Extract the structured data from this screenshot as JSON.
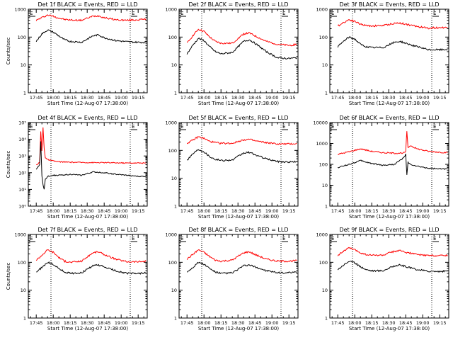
{
  "colors": {
    "events": "#000000",
    "lld": "#ff0000",
    "axis": "#000000"
  },
  "chart_data": [
    {
      "type": "line",
      "title": "Det 1f BLACK = Events, RED = LLD",
      "ylabel": "Counts/sec",
      "xlabel": "Start Time (12-Aug-07 17:38:00)",
      "x_ticks": [
        "17:45",
        "18:00",
        "18:15",
        "18:30",
        "18:45",
        "19:00",
        "19:15"
      ],
      "y_ticks": [
        "1",
        "10",
        "100",
        "1000"
      ],
      "ylim": [
        1,
        1000
      ],
      "y_scale": "log",
      "markers": [
        "E",
        "E"
      ],
      "series": [
        {
          "name": "LLD",
          "x": [
            0,
            5,
            10,
            15,
            20,
            25,
            30,
            40,
            50,
            55,
            60,
            70,
            80,
            90,
            97
          ],
          "values": [
            400,
            500,
            620,
            560,
            480,
            430,
            410,
            400,
            560,
            580,
            500,
            420,
            400,
            420,
            440
          ]
        },
        {
          "name": "Events",
          "x": [
            0,
            5,
            10,
            15,
            20,
            25,
            30,
            40,
            50,
            55,
            60,
            70,
            80,
            90,
            97
          ],
          "values": [
            70,
            130,
            180,
            150,
            110,
            80,
            70,
            65,
            110,
            120,
            95,
            75,
            68,
            65,
            65
          ]
        }
      ]
    },
    {
      "type": "line",
      "title": "Det 2f BLACK = Events, RED = LLD",
      "ylabel": "",
      "xlabel": "Start Time (12-Aug-07 17:38:00)",
      "x_ticks": [
        "17:45",
        "18:00",
        "18:15",
        "18:30",
        "18:45",
        "19:00",
        "19:15"
      ],
      "y_ticks": [
        "1",
        "10",
        "100",
        "1000"
      ],
      "ylim": [
        1,
        1000
      ],
      "y_scale": "log",
      "markers": [
        "E",
        "E"
      ],
      "series": [
        {
          "name": "LLD",
          "x": [
            0,
            5,
            10,
            15,
            20,
            25,
            30,
            40,
            50,
            55,
            60,
            70,
            80,
            90,
            97
          ],
          "values": [
            60,
            110,
            190,
            160,
            100,
            70,
            60,
            60,
            130,
            140,
            110,
            70,
            55,
            50,
            55
          ]
        },
        {
          "name": "Events",
          "x": [
            0,
            5,
            10,
            15,
            20,
            25,
            30,
            40,
            50,
            55,
            60,
            70,
            80,
            90,
            97
          ],
          "values": [
            25,
            50,
            90,
            75,
            45,
            30,
            25,
            28,
            70,
            80,
            60,
            30,
            18,
            17,
            18
          ]
        }
      ]
    },
    {
      "type": "line",
      "title": "Det 3f BLACK = Events, RED = LLD",
      "ylabel": "",
      "xlabel": "Start Time (12-Aug-07 17:38:00)",
      "x_ticks": [
        "17:45",
        "18:00",
        "18:15",
        "18:30",
        "18:45",
        "19:00",
        "19:15"
      ],
      "y_ticks": [
        "1",
        "10",
        "100",
        "1000"
      ],
      "ylim": [
        1,
        1000
      ],
      "y_scale": "log",
      "markers": [
        "E",
        "E"
      ],
      "series": [
        {
          "name": "LLD",
          "x": [
            0,
            5,
            10,
            15,
            20,
            25,
            30,
            40,
            50,
            55,
            60,
            70,
            80,
            90,
            97
          ],
          "values": [
            250,
            330,
            420,
            370,
            290,
            260,
            250,
            260,
            310,
            320,
            290,
            240,
            210,
            220,
            220
          ]
        },
        {
          "name": "Events",
          "x": [
            0,
            5,
            10,
            15,
            20,
            25,
            30,
            40,
            50,
            55,
            60,
            70,
            80,
            90,
            97
          ],
          "values": [
            45,
            70,
            100,
            85,
            55,
            45,
            42,
            42,
            65,
            70,
            60,
            45,
            35,
            35,
            36
          ]
        }
      ]
    },
    {
      "type": "line",
      "title": "Det 4f BLACK = Events, RED = LLD",
      "ylabel": "Counts/sec",
      "xlabel": "Start Time (12-Aug-07 17:38:00)",
      "x_ticks": [
        "17:45",
        "18:00",
        "18:15",
        "18:30",
        "18:45",
        "19:00",
        "19:15"
      ],
      "y_ticks": [
        "10⁰",
        "10¹",
        "10²",
        "10³",
        "10⁴",
        "10⁵"
      ],
      "ylim": [
        1,
        100000
      ],
      "y_scale": "log",
      "markers": [
        "E",
        "E"
      ],
      "series": [
        {
          "name": "LLD",
          "x": [
            0,
            3,
            4,
            5,
            6,
            7,
            8,
            10,
            15,
            20,
            30,
            40,
            50,
            60,
            70,
            80,
            90,
            97
          ],
          "values": [
            300,
            400,
            30000,
            2000,
            50000,
            3000,
            800,
            600,
            500,
            450,
            420,
            410,
            400,
            400,
            390,
            380,
            380,
            380
          ]
        },
        {
          "name": "Events",
          "x": [
            0,
            3,
            4,
            5,
            6,
            7,
            8,
            10,
            15,
            20,
            30,
            40,
            50,
            60,
            70,
            80,
            90,
            97
          ],
          "values": [
            150,
            300,
            8000,
            60,
            20,
            10,
            40,
            60,
            70,
            70,
            80,
            70,
            110,
            100,
            80,
            70,
            60,
            60
          ]
        }
      ]
    },
    {
      "type": "line",
      "title": "Det 5f BLACK = Events, RED = LLD",
      "ylabel": "",
      "xlabel": "Start Time (12-Aug-07 17:38:00)",
      "x_ticks": [
        "17:45",
        "18:00",
        "18:15",
        "18:30",
        "18:45",
        "19:00",
        "19:15"
      ],
      "y_ticks": [
        "1",
        "10",
        "100",
        "1000"
      ],
      "ylim": [
        1,
        1000
      ],
      "y_scale": "log",
      "markers": [
        "E",
        "E"
      ],
      "series": [
        {
          "name": "LLD",
          "x": [
            0,
            5,
            10,
            15,
            20,
            25,
            30,
            40,
            50,
            55,
            60,
            70,
            80,
            90,
            97
          ],
          "values": [
            180,
            230,
            310,
            270,
            210,
            190,
            180,
            180,
            240,
            250,
            220,
            190,
            170,
            170,
            175
          ]
        },
        {
          "name": "Events",
          "x": [
            0,
            5,
            10,
            15,
            20,
            25,
            30,
            40,
            50,
            55,
            60,
            70,
            80,
            90,
            97
          ],
          "values": [
            45,
            75,
            110,
            90,
            60,
            48,
            44,
            45,
            80,
            85,
            70,
            50,
            40,
            38,
            40
          ]
        }
      ]
    },
    {
      "type": "line",
      "title": "Det 6f BLACK = Events, RED = LLD",
      "ylabel": "",
      "xlabel": "Start Time (12-Aug-07 17:38:00)",
      "x_ticks": [
        "17:45",
        "18:00",
        "18:15",
        "18:30",
        "18:45",
        "19:00",
        "19:15"
      ],
      "y_ticks": [
        "1",
        "10",
        "100",
        "1000",
        "10000"
      ],
      "ylim": [
        1,
        10000
      ],
      "y_scale": "log",
      "markers": [
        "E",
        "E"
      ],
      "series": [
        {
          "name": "LLD",
          "x": [
            0,
            10,
            20,
            30,
            40,
            50,
            58,
            60,
            61,
            62,
            64,
            70,
            80,
            90,
            97
          ],
          "values": [
            300,
            400,
            550,
            420,
            360,
            340,
            350,
            400,
            4000,
            600,
            800,
            550,
            420,
            380,
            360
          ]
        },
        {
          "name": "Events",
          "x": [
            0,
            10,
            20,
            30,
            40,
            50,
            58,
            60,
            61,
            62,
            64,
            70,
            80,
            90,
            97
          ],
          "values": [
            70,
            100,
            150,
            110,
            90,
            100,
            200,
            300,
            30,
            120,
            100,
            80,
            65,
            60,
            60
          ]
        }
      ]
    },
    {
      "type": "line",
      "title": "Det 7f BLACK = Events, RED = LLD",
      "ylabel": "Counts/sec",
      "xlabel": "Start Time (12-Aug-07 17:38:00)",
      "x_ticks": [
        "17:45",
        "18:00",
        "18:15",
        "18:30",
        "18:45",
        "19:00",
        "19:15"
      ],
      "y_ticks": [
        "1",
        "10",
        "100",
        "1000"
      ],
      "ylim": [
        1,
        1000
      ],
      "y_scale": "log",
      "markers": [
        "E",
        "E"
      ],
      "series": [
        {
          "name": "LLD",
          "x": [
            0,
            5,
            10,
            15,
            20,
            25,
            30,
            40,
            50,
            55,
            60,
            70,
            80,
            90,
            97
          ],
          "values": [
            120,
            180,
            280,
            230,
            150,
            110,
            100,
            110,
            220,
            240,
            190,
            130,
            105,
            105,
            110
          ]
        },
        {
          "name": "Events",
          "x": [
            0,
            5,
            10,
            15,
            20,
            25,
            30,
            40,
            50,
            55,
            60,
            70,
            80,
            90,
            97
          ],
          "values": [
            45,
            65,
            100,
            85,
            60,
            45,
            40,
            42,
            75,
            80,
            68,
            50,
            40,
            40,
            42
          ]
        }
      ]
    },
    {
      "type": "line",
      "title": "Det 8f BLACK = Events, RED = LLD",
      "ylabel": "",
      "xlabel": "Start Time (12-Aug-07 17:38:00)",
      "x_ticks": [
        "17:45",
        "18:00",
        "18:15",
        "18:30",
        "18:45",
        "19:00",
        "19:15"
      ],
      "y_ticks": [
        "1",
        "10",
        "100",
        "1000"
      ],
      "ylim": [
        1,
        1000
      ],
      "y_scale": "log",
      "markers": [
        "E",
        "E"
      ],
      "series": [
        {
          "name": "LLD",
          "x": [
            0,
            5,
            10,
            15,
            20,
            25,
            30,
            40,
            50,
            55,
            60,
            70,
            80,
            90,
            97
          ],
          "values": [
            130,
            190,
            280,
            230,
            160,
            120,
            110,
            120,
            220,
            240,
            190,
            130,
            110,
            110,
            115
          ]
        },
        {
          "name": "Events",
          "x": [
            0,
            5,
            10,
            15,
            20,
            25,
            30,
            40,
            50,
            55,
            60,
            70,
            80,
            90,
            97
          ],
          "values": [
            45,
            65,
            100,
            85,
            60,
            45,
            40,
            42,
            75,
            80,
            68,
            50,
            42,
            42,
            44
          ]
        }
      ]
    },
    {
      "type": "line",
      "title": "Det 9f BLACK = Events, RED = LLD",
      "ylabel": "",
      "xlabel": "Start Time (12-Aug-07 17:38:00)",
      "x_ticks": [
        "17:45",
        "18:00",
        "18:15",
        "18:30",
        "18:45",
        "19:00",
        "19:15"
      ],
      "y_ticks": [
        "1",
        "10",
        "100",
        "1000"
      ],
      "ylim": [
        1,
        1000
      ],
      "y_scale": "log",
      "markers": [
        "E",
        "E"
      ],
      "series": [
        {
          "name": "LLD",
          "x": [
            0,
            5,
            10,
            15,
            20,
            25,
            30,
            40,
            50,
            55,
            60,
            70,
            80,
            90,
            97
          ],
          "values": [
            180,
            250,
            330,
            280,
            220,
            190,
            180,
            180,
            250,
            260,
            230,
            190,
            175,
            175,
            180
          ]
        },
        {
          "name": "Events",
          "x": [
            0,
            5,
            10,
            15,
            20,
            25,
            30,
            40,
            50,
            55,
            60,
            70,
            80,
            90,
            97
          ],
          "values": [
            55,
            80,
            110,
            95,
            70,
            55,
            50,
            50,
            75,
            80,
            70,
            55,
            48,
            47,
            48
          ]
        }
      ]
    }
  ]
}
